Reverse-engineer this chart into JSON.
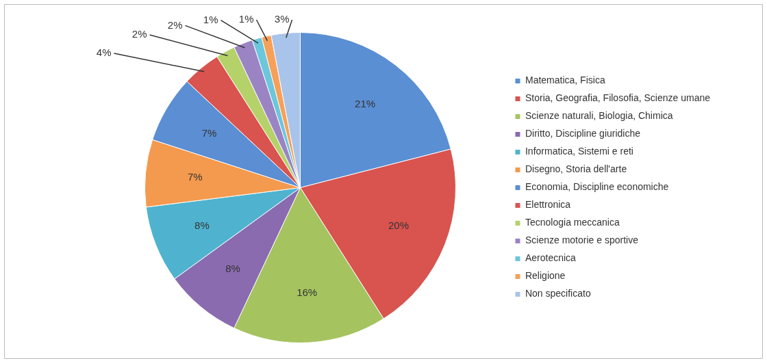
{
  "chart_data": {
    "type": "pie",
    "categories": [
      "Matematica, Fisica",
      "Storia, Geografia, Filosofia, Scienze umane",
      "Scienze naturali, Biologia, Chimica",
      "Diritto, Discipline giuridiche",
      "Informatica, Sistemi e reti",
      "Disegno, Storia dell'arte",
      "Economia, Discipline economiche",
      "Elettronica",
      "Tecnologia meccanica",
      "Scienze motorie e sportive",
      "Aerotecnica",
      "Religione",
      "Non specificato"
    ],
    "values": [
      21,
      20,
      16,
      8,
      8,
      7,
      7,
      4,
      2,
      2,
      1,
      1,
      3
    ],
    "colors": [
      "#5a8fd4",
      "#d9534f",
      "#a5c35f",
      "#8a6bb0",
      "#4fb3cf",
      "#f39a4e",
      "#5b8ed2",
      "#d9534f",
      "#b5d26a",
      "#9b84c4",
      "#6cc6dc",
      "#f6a05a",
      "#a9c4ea"
    ],
    "value_labels": [
      "21%",
      "20%",
      "16%",
      "8%",
      "8%",
      "7%",
      "7%",
      "4%",
      "2%",
      "2%",
      "1%",
      "1%",
      "3%"
    ],
    "legend": "right"
  }
}
